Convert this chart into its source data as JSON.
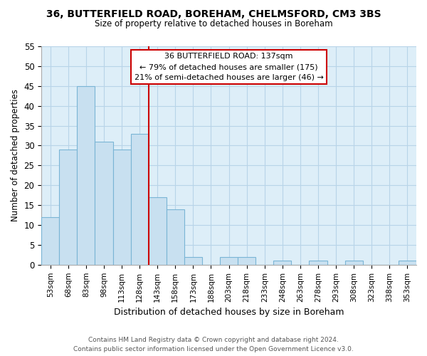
{
  "title": "36, BUTTERFIELD ROAD, BOREHAM, CHELMSFORD, CM3 3BS",
  "subtitle": "Size of property relative to detached houses in Boreham",
  "xlabel": "Distribution of detached houses by size in Boreham",
  "ylabel": "Number of detached properties",
  "bar_labels": [
    "53sqm",
    "68sqm",
    "83sqm",
    "98sqm",
    "113sqm",
    "128sqm",
    "143sqm",
    "158sqm",
    "173sqm",
    "188sqm",
    "203sqm",
    "218sqm",
    "233sqm",
    "248sqm",
    "263sqm",
    "278sqm",
    "293sqm",
    "308sqm",
    "323sqm",
    "338sqm",
    "353sqm"
  ],
  "bar_values": [
    12,
    29,
    45,
    31,
    29,
    33,
    17,
    14,
    2,
    0,
    2,
    2,
    0,
    1,
    0,
    1,
    0,
    1,
    0,
    0,
    1
  ],
  "bar_color": "#c8e0f0",
  "bar_edge_color": "#7ab5d5",
  "property_line_color": "#cc0000",
  "annotation_title": "36 BUTTERFIELD ROAD: 137sqm",
  "annotation_line1": "← 79% of detached houses are smaller (175)",
  "annotation_line2": "21% of semi-detached houses are larger (46) →",
  "annotation_box_color": "#ffffff",
  "annotation_box_edge_color": "#cc0000",
  "ylim": [
    0,
    55
  ],
  "yticks": [
    0,
    5,
    10,
    15,
    20,
    25,
    30,
    35,
    40,
    45,
    50,
    55
  ],
  "plot_bg_color": "#ddeef8",
  "footer_line1": "Contains HM Land Registry data © Crown copyright and database right 2024.",
  "footer_line2": "Contains public sector information licensed under the Open Government Licence v3.0.",
  "background_color": "#ffffff",
  "grid_color": "#b8d4e8"
}
